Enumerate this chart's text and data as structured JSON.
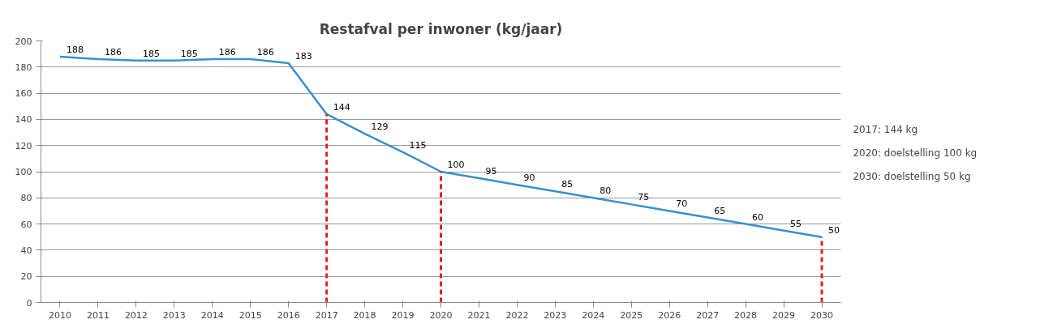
{
  "chart_data": {
    "type": "line",
    "title": "Restafval per inwoner (kg/jaar)",
    "categories": [
      "2010",
      "2011",
      "2012",
      "2013",
      "2014",
      "2015",
      "2016",
      "2017",
      "2018",
      "2019",
      "2020",
      "2021",
      "2022",
      "2023",
      "2024",
      "2025",
      "2026",
      "2027",
      "2028",
      "2029",
      "2030"
    ],
    "series": [
      {
        "color": "#3a8fd0",
        "values": [
          188,
          186,
          185,
          185,
          186,
          186,
          183,
          144,
          129,
          115,
          100,
          95,
          90,
          85,
          80,
          75,
          70,
          65,
          60,
          55,
          50
        ]
      }
    ],
    "ylim": [
      0,
      200
    ],
    "yticks": [
      0,
      20,
      40,
      60,
      80,
      100,
      120,
      140,
      160,
      180,
      200
    ],
    "grid": "y",
    "data_labels": true,
    "marker": "none",
    "line_style": "solid",
    "ref_lines": [
      {
        "axis": "x",
        "value": "2017",
        "color": "#e02020",
        "line_style": "dashed"
      },
      {
        "axis": "x",
        "value": "2020",
        "color": "#e02020",
        "line_style": "dashed"
      },
      {
        "axis": "x",
        "value": "2030",
        "color": "#e02020",
        "line_style": "dashed"
      }
    ],
    "annotations": [
      "2017: 144 kg",
      "2020: doelstelling 100 kg",
      "2030: doelstelling 50 kg"
    ]
  }
}
